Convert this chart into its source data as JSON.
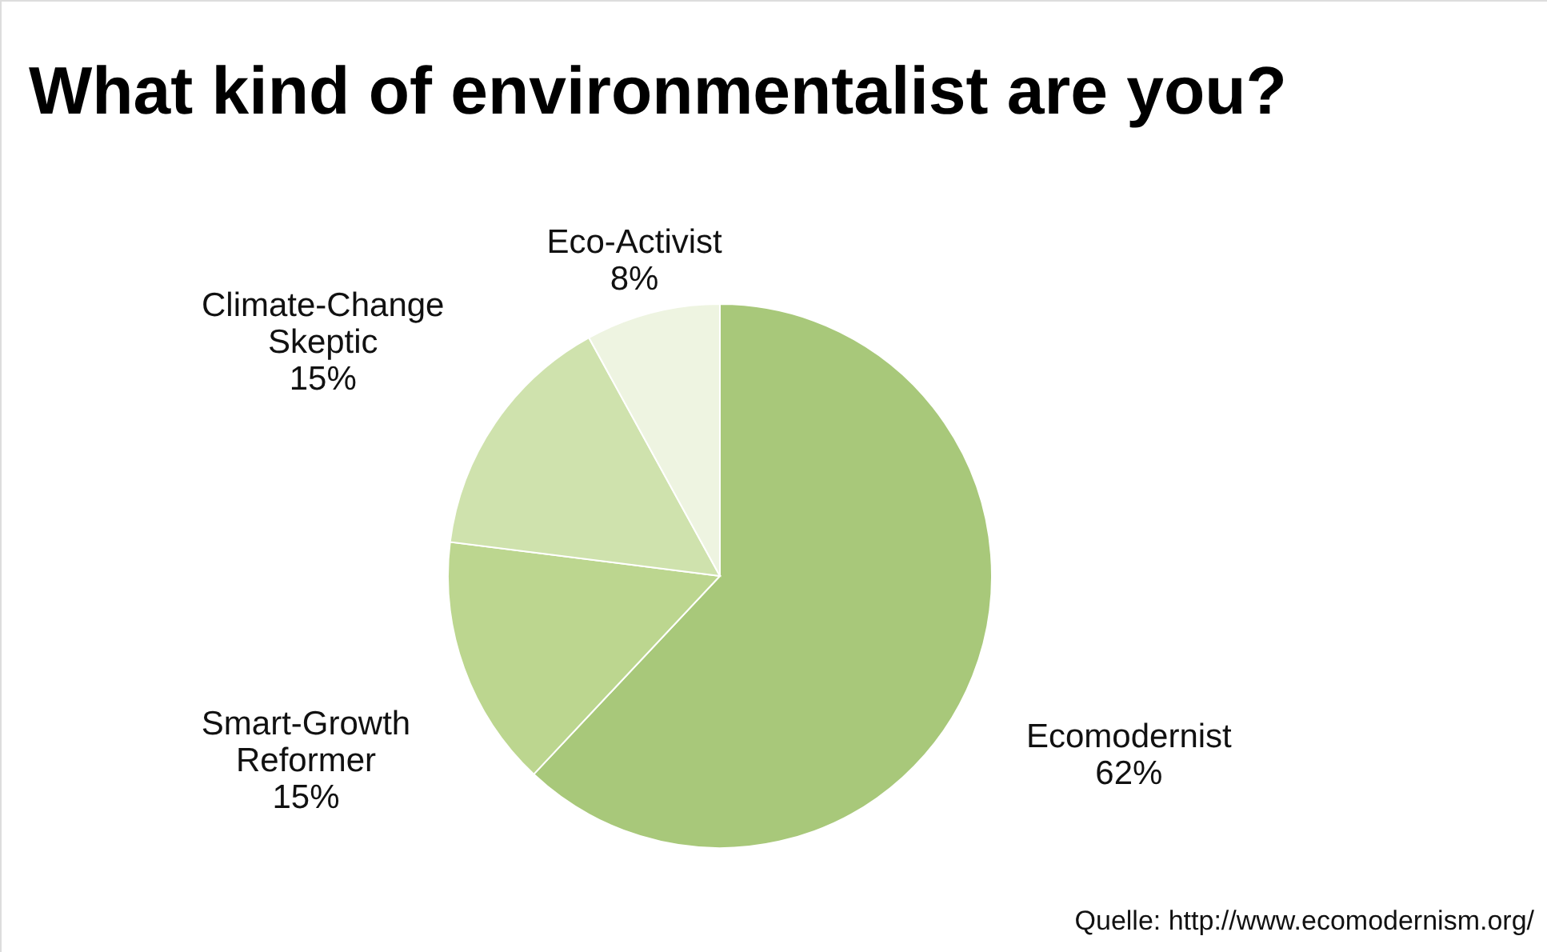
{
  "chart_data": {
    "type": "pie",
    "title": "What kind of environmentalist are you?",
    "categories": [
      "Ecomodernist",
      "Smart-Growth Reformer",
      "Climate-Change Skeptic",
      "Eco-Activist"
    ],
    "values": [
      62,
      15,
      15,
      8
    ],
    "value_labels": [
      "62%",
      "15%",
      "15%",
      "8%"
    ],
    "colors": [
      "#a8c87a",
      "#bcd68f",
      "#cfe2ad",
      "#eef4e1"
    ],
    "annotations": [
      "Quelle: http://www.ecomodernism.org/"
    ]
  }
}
